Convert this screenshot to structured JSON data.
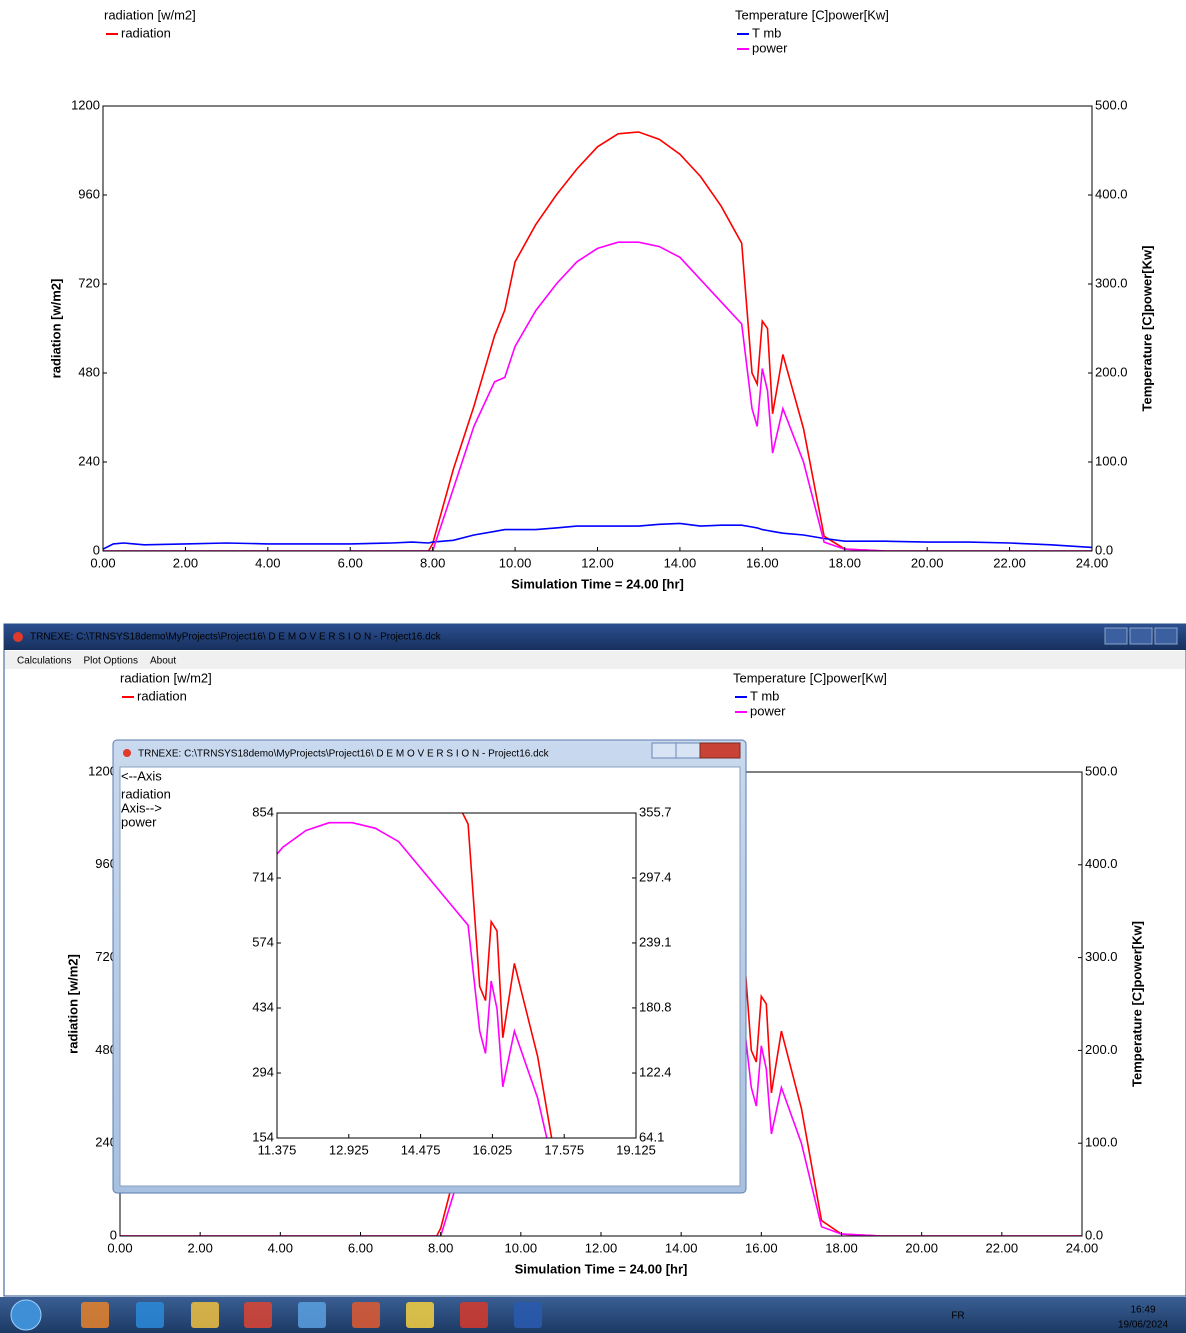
{
  "chart_data": [
    {
      "type": "line",
      "xlabel": "Simulation Time =  24.00 [hr]",
      "ylabel": "radiation [w/m2]",
      "y2label": "Temperature [C]power[Kw]",
      "x": [
        0,
        0.25,
        0.5,
        1,
        2,
        3,
        4,
        5,
        6,
        7,
        7.5,
        7.9,
        8,
        8.5,
        9,
        9.5,
        9.75,
        10,
        10.5,
        11,
        11.5,
        12,
        12.5,
        13,
        13.5,
        14,
        14.5,
        15,
        15.5,
        15.75,
        15.875,
        16,
        16.125,
        16.25,
        16.5,
        17,
        17.5,
        18,
        19,
        20,
        21,
        22,
        23,
        24
      ],
      "series": [
        {
          "name": "radiation",
          "color": "#ff0000",
          "values": [
            0,
            0,
            0,
            0,
            0,
            0,
            0,
            0,
            0,
            0,
            0,
            0,
            20,
            220,
            390,
            580,
            650,
            780,
            880,
            960,
            1030,
            1090,
            1125,
            1130,
            1110,
            1070,
            1010,
            930,
            830,
            480,
            450,
            620,
            600,
            370,
            530,
            330,
            40,
            5,
            0,
            0,
            0,
            0,
            0,
            0
          ]
        },
        {
          "name": "T  mb",
          "color": "#0000ff",
          "axis": "y2",
          "values": [
            2,
            8,
            9,
            7,
            8,
            9,
            8,
            8,
            8,
            9,
            10,
            9,
            10,
            12,
            18,
            22,
            24,
            24,
            24,
            26,
            28,
            28,
            28,
            28,
            30,
            31,
            28,
            29,
            29,
            27,
            26,
            24,
            23,
            22,
            20,
            18,
            14,
            11,
            11,
            10,
            10,
            9,
            7,
            4
          ]
        },
        {
          "name": "power",
          "color": "#ff00ff",
          "axis": "y2",
          "values": [
            0,
            0,
            0,
            0,
            0,
            0,
            0,
            0,
            0,
            0,
            0,
            0,
            0,
            70,
            140,
            190,
            195,
            230,
            270,
            300,
            325,
            340,
            347,
            347,
            342,
            330,
            305,
            280,
            255,
            160,
            140,
            205,
            180,
            110,
            160,
            100,
            10,
            2,
            0,
            0,
            0,
            0,
            0,
            0
          ]
        }
      ],
      "xlim": [
        0,
        24
      ],
      "xticks": [
        {
          "value": 0,
          "label": "0.00"
        },
        {
          "value": 2,
          "label": "2.00"
        },
        {
          "value": 4,
          "label": "4.00"
        },
        {
          "value": 6,
          "label": "6.00"
        },
        {
          "value": 8,
          "label": "8.00"
        },
        {
          "value": 10,
          "label": "10.00"
        },
        {
          "value": 12,
          "label": "12.00"
        },
        {
          "value": 14,
          "label": "14.00"
        },
        {
          "value": 16,
          "label": "16.00"
        },
        {
          "value": 18,
          "label": "18.00"
        },
        {
          "value": 20,
          "label": "20.00"
        },
        {
          "value": 22,
          "label": "22.00"
        },
        {
          "value": 24,
          "label": "24.00"
        }
      ],
      "ylim": [
        0,
        1200
      ],
      "yticks": [
        0,
        240,
        480,
        720,
        960,
        1200
      ],
      "y2lim": [
        0,
        500
      ],
      "y2ticks": [
        {
          "value": 0,
          "label": "0.0"
        },
        {
          "value": 100,
          "label": "100.0"
        },
        {
          "value": 200,
          "label": "200.0"
        },
        {
          "value": 300,
          "label": "300.0"
        },
        {
          "value": 400,
          "label": "400.0"
        },
        {
          "value": 500,
          "label": "500.0"
        }
      ],
      "grid": false
    },
    {
      "type": "line",
      "left_axis_note": "<--Axis",
      "right_axis_note": "Axis-->",
      "xlim": [
        11.375,
        19.125
      ],
      "xticks": [
        11.375,
        12.925,
        14.475,
        16.025,
        17.575,
        19.125
      ],
      "ylim": [
        154,
        854
      ],
      "yticks": [
        154,
        294,
        434,
        574,
        714,
        854
      ],
      "y2lim": [
        64.1,
        355.7
      ],
      "y2ticks": [
        64.1,
        122.4,
        180.8,
        239.1,
        297.4,
        355.7
      ],
      "grid": false
    }
  ],
  "window": {
    "title": "TRNEXE: C:\\TRNSYS18demo\\MyProjects\\Project16\\ D E M O V E R S I O N - Project16.dck",
    "menu": [
      "Calculations",
      "Plot Options",
      "About"
    ],
    "taskbar": {
      "language": "FR",
      "time": "16:49",
      "date": "19/06/2024"
    }
  }
}
